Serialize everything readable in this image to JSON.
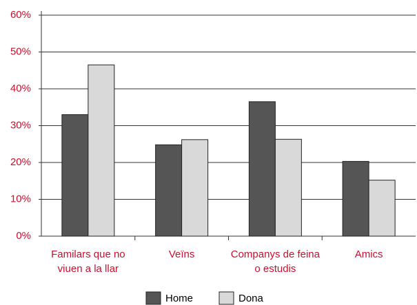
{
  "chart_data": {
    "type": "bar",
    "categories": [
      "Familars que no\nviuen a la llar",
      "Veïns",
      "Companys de feina\no estudis",
      "Amics"
    ],
    "series": [
      {
        "name": "Home",
        "color": "#555555",
        "values": [
          33,
          24.8,
          36.5,
          20.3
        ]
      },
      {
        "name": "Dona",
        "color": "#d9d9d9",
        "values": [
          46.5,
          26.2,
          26.3,
          15.2
        ]
      }
    ],
    "ylim": [
      0,
      60
    ],
    "yticks": [
      {
        "value": 0,
        "label": "0%"
      },
      {
        "value": 10,
        "label": "10%"
      },
      {
        "value": 20,
        "label": "20%"
      },
      {
        "value": 30,
        "label": "30%"
      },
      {
        "value": 40,
        "label": "40%"
      },
      {
        "value": 50,
        "label": "50%"
      },
      {
        "value": 60,
        "label": "60%"
      }
    ],
    "grid": true,
    "legend": "bottom"
  }
}
